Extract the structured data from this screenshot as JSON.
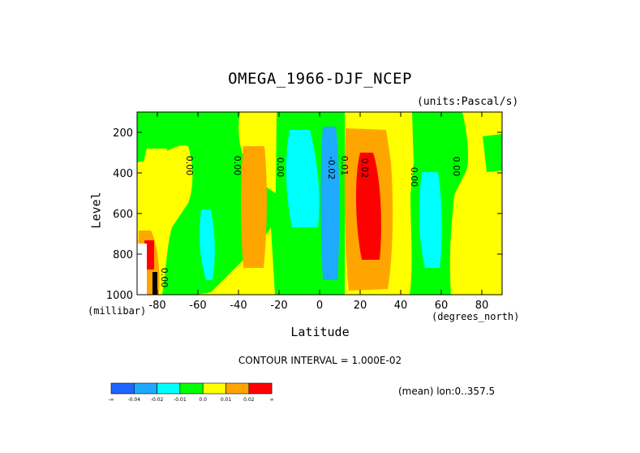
{
  "chart_data": {
    "type": "heatmap",
    "title": "OMEGA_1966-DJF_NCEP",
    "units_label": "(units:Pascal/s)",
    "xlabel": "Latitude",
    "ylabel": "Level",
    "x_unit_label": "(degrees_north)",
    "y_unit_label": "(millibar)",
    "xlim": [
      -90,
      90
    ],
    "ylim": [
      1000,
      100
    ],
    "x_ticks": [
      -80,
      -60,
      -40,
      -20,
      0,
      20,
      40,
      60,
      80
    ],
    "x_tick_labels": [
      "-80",
      "-60",
      "-40",
      "-20",
      "0",
      "20",
      "40",
      "60",
      "80"
    ],
    "y_ticks": [
      200,
      400,
      600,
      800,
      1000
    ],
    "y_tick_labels": [
      "200",
      "400",
      "600",
      "800",
      "1000"
    ],
    "contour_interval_text": "CONTOUR INTERVAL = 1.000E-02",
    "footer_text": "(mean) lon:0..357.5",
    "contour_labels": [
      "0.00",
      "0.00",
      "0.00",
      "-0.02",
      "0.01",
      "0.02",
      "0.00",
      "0.00",
      "0.00"
    ],
    "colorbar": {
      "colors": [
        "#1e64ff",
        "#1eaaff",
        "#00ffff",
        "#00ff00",
        "#ffff00",
        "#ffa500",
        "#ff0000"
      ],
      "labels": [
        "-∞",
        "-0.04",
        "-0.02",
        "-0.01",
        "0.0",
        "0.01",
        "0.02",
        "∞"
      ]
    },
    "regions": [
      {
        "level": "-0.01..0.0",
        "lat_range": [
          -90,
          -82
        ],
        "lev_range": [
          100,
          320
        ]
      },
      {
        "level": "-0.01..0.0",
        "lat_range": [
          -73,
          -27
        ],
        "lev_range": [
          100,
          180
        ]
      },
      {
        "level": "-0.01..0.0",
        "lat_range": [
          -64,
          -54
        ],
        "lev_range": [
          400,
          1000
        ]
      },
      {
        "level": "-0.02..-0.01",
        "lat_range": [
          -61,
          -57
        ],
        "lev_range": [
          550,
          940
        ]
      },
      {
        "level": "0.01..0.02",
        "lat_range": [
          -38,
          -28
        ],
        "lev_range": [
          250,
          880
        ]
      },
      {
        "level": "-0.01..0.0",
        "lat_range": [
          -25,
          15
        ],
        "lev_range": [
          100,
          1000
        ]
      },
      {
        "level": "-0.02..-0.01",
        "lat_range": [
          -16,
          0
        ],
        "lev_range": [
          200,
          720
        ]
      },
      {
        "level": "-0.04..-0.02",
        "lat_range": [
          2,
          10
        ],
        "lev_range": [
          220,
          970
        ]
      },
      {
        "level": "0.01..0.02",
        "lat_range": [
          12,
          33
        ],
        "lev_range": [
          170,
          980
        ]
      },
      {
        "level": "0.02..inf",
        "lat_range": [
          18,
          30
        ],
        "lev_range": [
          300,
          870
        ]
      },
      {
        "level": "-0.01..0.0",
        "lat_range": [
          46,
          62
        ],
        "lev_range": [
          180,
          1000
        ]
      },
      {
        "level": "-0.02..-0.01",
        "lat_range": [
          53,
          59
        ],
        "lev_range": [
          430,
          930
        ]
      },
      {
        "level": "-0.01..0.0",
        "lat_range": [
          65,
          77
        ],
        "lev_range": [
          100,
          230
        ]
      },
      {
        "level": "0.01..0.02",
        "lat_range": [
          -88,
          -80
        ],
        "lev_range": [
          680,
          1000
        ]
      },
      {
        "level": "0.02..inf",
        "lat_range": [
          -86,
          -82
        ],
        "lev_range": [
          760,
          900
        ]
      }
    ]
  }
}
